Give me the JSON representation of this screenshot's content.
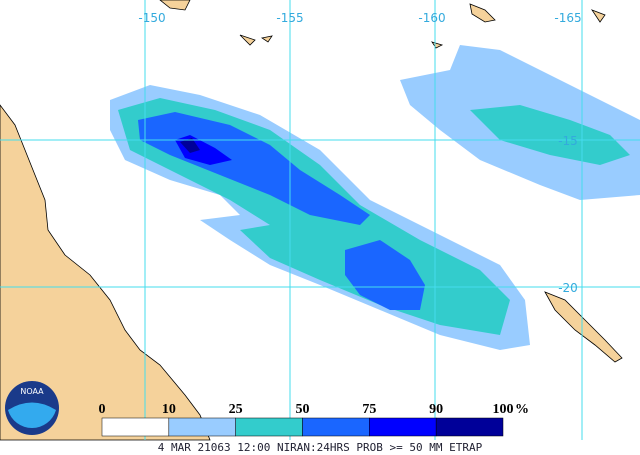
{
  "map": {
    "lon_labels": [
      "-150",
      "-155",
      "-160",
      "-165"
    ],
    "lat_labels": [
      "-15",
      "-20"
    ],
    "logo": "NOAA",
    "legend": {
      "labels": [
        "0",
        "10",
        "25",
        "50",
        "75",
        "90",
        "100"
      ],
      "unit": "%",
      "colors": [
        "#ffffff",
        "#99ccff",
        "#33cccc",
        "#1a66ff",
        "#0000ff",
        "#000099"
      ]
    },
    "footer": "4 MAR 21063 12:00 NIRAN:24HRS PROB >= 50 MM ETRAP"
  }
}
